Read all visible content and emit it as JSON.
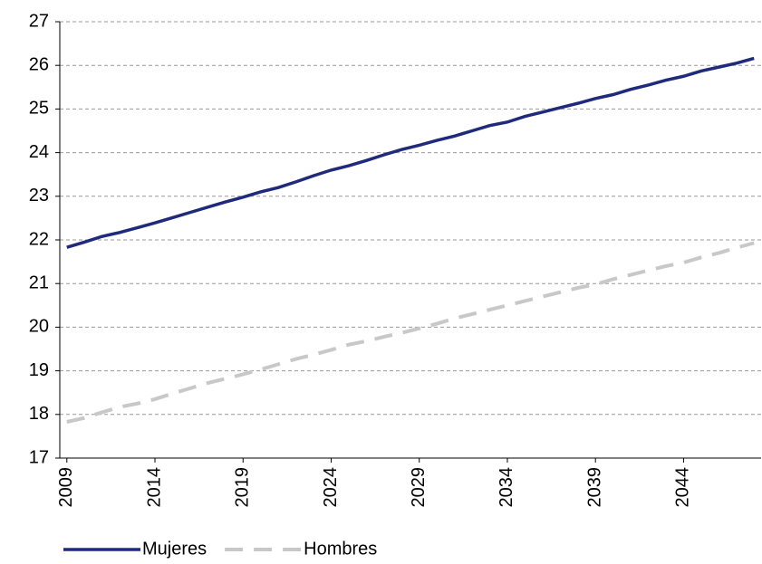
{
  "chart_data": {
    "type": "line",
    "x": [
      2009,
      2010,
      2011,
      2012,
      2013,
      2014,
      2015,
      2016,
      2017,
      2018,
      2019,
      2020,
      2021,
      2022,
      2023,
      2024,
      2025,
      2026,
      2027,
      2028,
      2029,
      2030,
      2031,
      2032,
      2033,
      2034,
      2035,
      2036,
      2037,
      2038,
      2039,
      2040,
      2041,
      2042,
      2043,
      2044,
      2045,
      2046,
      2047,
      2048
    ],
    "series": [
      {
        "name": "Mujeres",
        "color": "#1f2a7c",
        "dash": "solid",
        "values": [
          21.83,
          21.95,
          22.08,
          22.17,
          22.28,
          22.39,
          22.51,
          22.63,
          22.75,
          22.87,
          22.98,
          23.1,
          23.2,
          23.33,
          23.47,
          23.6,
          23.7,
          23.82,
          23.95,
          24.07,
          24.17,
          24.28,
          24.38,
          24.5,
          24.62,
          24.7,
          24.83,
          24.93,
          25.03,
          25.13,
          25.24,
          25.33,
          25.45,
          25.55,
          25.66,
          25.75,
          25.87,
          25.96,
          26.05,
          26.16
        ]
      },
      {
        "name": "Hombres",
        "color": "#c8c8c8",
        "dash": "dashed",
        "values": [
          17.83,
          17.92,
          18.05,
          18.17,
          18.25,
          18.35,
          18.48,
          18.6,
          18.72,
          18.82,
          18.92,
          19.03,
          19.15,
          19.27,
          19.37,
          19.48,
          19.6,
          19.68,
          19.78,
          19.87,
          19.97,
          20.08,
          20.2,
          20.3,
          20.4,
          20.5,
          20.6,
          20.7,
          20.8,
          20.9,
          20.98,
          21.1,
          21.2,
          21.3,
          21.4,
          21.48,
          21.6,
          21.7,
          21.82,
          21.93
        ]
      }
    ],
    "xlim": [
      2008.6,
      2048.4
    ],
    "xticks": [
      2009,
      2014,
      2019,
      2024,
      2029,
      2034,
      2039,
      2044
    ],
    "ylim": [
      17,
      27
    ],
    "yticks": [
      17,
      18,
      19,
      20,
      21,
      22,
      23,
      24,
      25,
      26,
      27
    ],
    "grid": true,
    "legend": "bottom"
  }
}
